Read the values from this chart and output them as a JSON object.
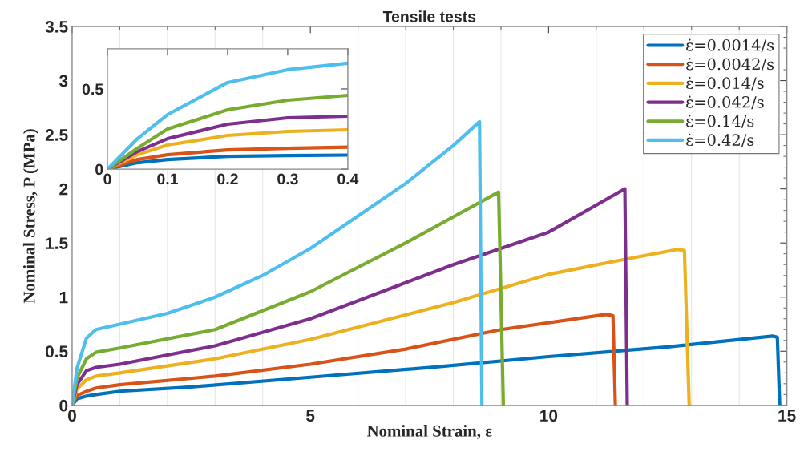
{
  "chart_data": [
    {
      "type": "line",
      "title": "Tensile tests",
      "xlabel": "Nominal Strain, ε",
      "ylabel": "Nominal Stress, P (MPa)",
      "xlim": [
        0,
        15
      ],
      "xticks": [
        0,
        5,
        10,
        15
      ],
      "ylim": [
        0,
        3.5
      ],
      "yticks": [
        0,
        0.5,
        1,
        1.5,
        2,
        2.5,
        3,
        3.5
      ],
      "grid": "x",
      "legend": "top right",
      "series": [
        {
          "name": "ε̇=0.0014/s",
          "color": "#0072bd",
          "x": [
            0,
            0.1,
            0.3,
            0.5,
            1,
            2.5,
            5,
            7.5,
            10,
            12.5,
            14.7,
            14.8,
            14.85
          ],
          "values": [
            0,
            0.06,
            0.085,
            0.1,
            0.13,
            0.17,
            0.26,
            0.35,
            0.45,
            0.54,
            0.64,
            0.63,
            0
          ]
        },
        {
          "name": "ε̇=0.0042/s",
          "color": "#d95319",
          "x": [
            0,
            0.1,
            0.3,
            0.5,
            1,
            3,
            5,
            7,
            9,
            11.2,
            11.35,
            11.4
          ],
          "values": [
            0,
            0.09,
            0.13,
            0.16,
            0.19,
            0.27,
            0.38,
            0.52,
            0.7,
            0.84,
            0.83,
            0
          ]
        },
        {
          "name": "ε̇=0.014/s",
          "color": "#edb120",
          "x": [
            0,
            0.1,
            0.3,
            0.5,
            1,
            3,
            5,
            8,
            10,
            11.5,
            12.7,
            12.85,
            12.95
          ],
          "values": [
            0,
            0.15,
            0.235,
            0.27,
            0.3,
            0.43,
            0.61,
            0.95,
            1.21,
            1.34,
            1.44,
            1.43,
            0
          ]
        },
        {
          "name": "ε̇=0.042/s",
          "color": "#7e2f8e",
          "x": [
            0,
            0.1,
            0.3,
            0.5,
            1,
            3,
            5,
            8,
            10,
            11.6,
            11.65
          ],
          "values": [
            0,
            0.19,
            0.32,
            0.35,
            0.38,
            0.55,
            0.8,
            1.3,
            1.6,
            2.0,
            0
          ]
        },
        {
          "name": "ε̇=0.14/s",
          "color": "#77ac30",
          "x": [
            0,
            0.1,
            0.3,
            0.5,
            1,
            3,
            5,
            7,
            8.95,
            9.05
          ],
          "values": [
            0,
            0.25,
            0.43,
            0.49,
            0.53,
            0.7,
            1.05,
            1.5,
            1.97,
            0
          ]
        },
        {
          "name": "ε̇=0.42/s",
          "color": "#4dbeee",
          "x": [
            0,
            0.1,
            0.3,
            0.5,
            1,
            2,
            3,
            4,
            5,
            6,
            7,
            8,
            8.55,
            8.6
          ],
          "values": [
            0,
            0.34,
            0.62,
            0.7,
            0.75,
            0.85,
            1.0,
            1.2,
            1.45,
            1.75,
            2.05,
            2.4,
            2.62,
            0
          ]
        }
      ]
    },
    {
      "type": "line",
      "xlim": [
        0,
        0.4
      ],
      "xticks": [
        0,
        0.1,
        0.2,
        0.3,
        0.4
      ],
      "ylim": [
        0,
        0.75
      ],
      "yticks": [
        0,
        0.5
      ],
      "series": [
        {
          "color": "#0072bd",
          "x": [
            0,
            0.05,
            0.1,
            0.2,
            0.3,
            0.4
          ],
          "values": [
            0,
            0.04,
            0.06,
            0.08,
            0.085,
            0.088
          ]
        },
        {
          "color": "#d95319",
          "x": [
            0,
            0.05,
            0.1,
            0.2,
            0.3,
            0.4
          ],
          "values": [
            0,
            0.06,
            0.09,
            0.12,
            0.13,
            0.137
          ]
        },
        {
          "color": "#edb120",
          "x": [
            0,
            0.05,
            0.1,
            0.2,
            0.3,
            0.4
          ],
          "values": [
            0,
            0.09,
            0.15,
            0.21,
            0.235,
            0.245
          ]
        },
        {
          "color": "#7e2f8e",
          "x": [
            0,
            0.05,
            0.1,
            0.2,
            0.3,
            0.4
          ],
          "values": [
            0,
            0.11,
            0.19,
            0.28,
            0.32,
            0.33
          ]
        },
        {
          "color": "#77ac30",
          "x": [
            0,
            0.05,
            0.1,
            0.2,
            0.3,
            0.4
          ],
          "values": [
            0,
            0.13,
            0.25,
            0.37,
            0.43,
            0.46
          ]
        },
        {
          "color": "#4dbeee",
          "x": [
            0,
            0.05,
            0.1,
            0.2,
            0.3,
            0.4
          ],
          "values": [
            0,
            0.19,
            0.34,
            0.54,
            0.62,
            0.66
          ]
        }
      ]
    }
  ]
}
